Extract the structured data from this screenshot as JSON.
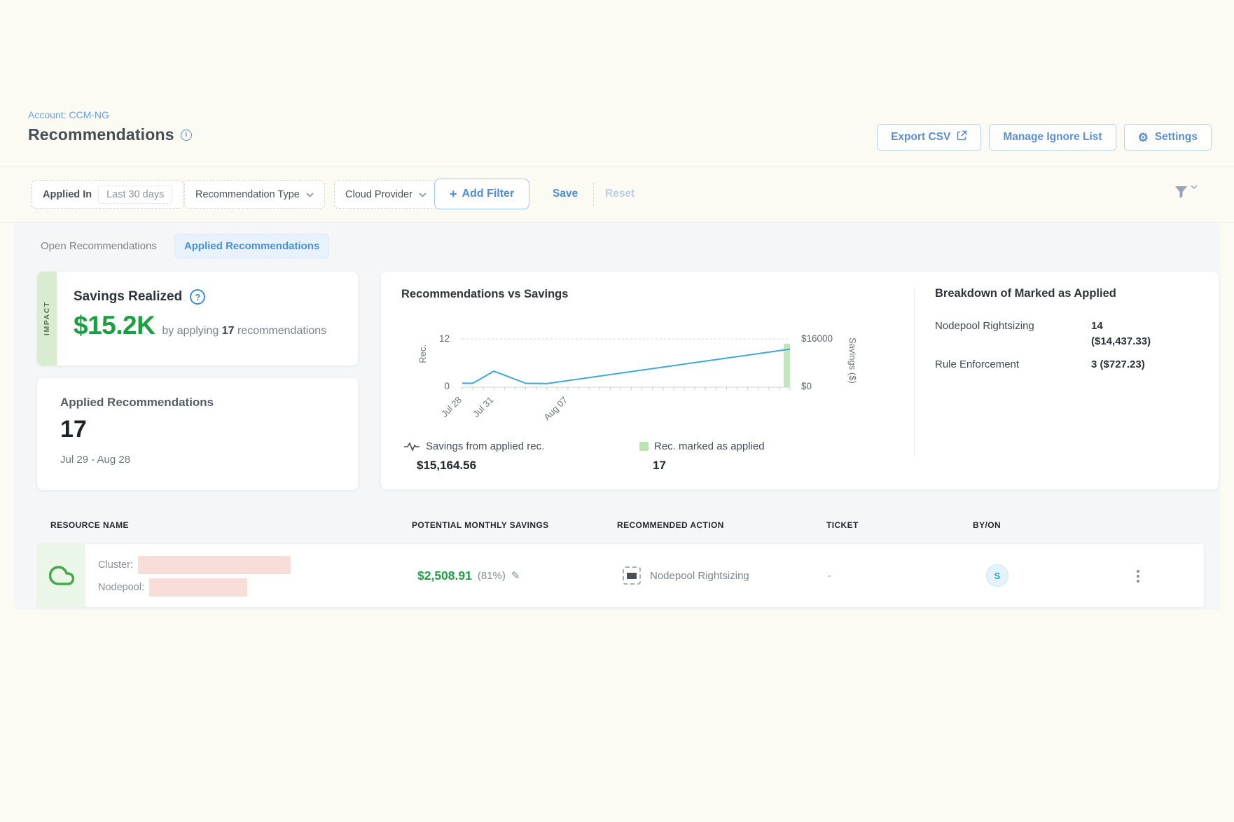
{
  "header": {
    "account_label": "Account: CCM-NG",
    "title": "Recommendations",
    "export_csv_label": "Export CSV",
    "manage_ignore_label": "Manage Ignore List",
    "settings_label": "Settings"
  },
  "filter_bar": {
    "applied_in_label": "Applied In",
    "applied_in_value": "Last 30 days",
    "recommendation_type_label": "Recommendation Type",
    "cloud_provider_label": "Cloud Provider",
    "add_filter_plus": "+",
    "add_filter_label": "Add Filter",
    "save_label": "Save",
    "reset_label": "Reset"
  },
  "tabs": {
    "open_label": "Open Recommendations",
    "applied_label": "Applied Recommendations"
  },
  "impact_card": {
    "stripe_label": "IMPACT",
    "title": "Savings Realized",
    "amount": "$15.2K",
    "desc_prefix": "by applying",
    "desc_count": "17",
    "desc_suffix": "recommendations"
  },
  "applied_card": {
    "title": "Applied Recommendations",
    "count": "17",
    "date_range": "Jul 29 - Aug 28"
  },
  "chart_data": {
    "type": "line+bar",
    "title": "Recommendations vs Savings",
    "x_max_days": 31,
    "x_ticks": [
      {
        "day": 0,
        "label": "Jul 28"
      },
      {
        "day": 3,
        "label": "Jul 31"
      },
      {
        "day": 10,
        "label": "Aug 07"
      }
    ],
    "left_axis": {
      "label": "Rec.",
      "ticks": [
        0,
        12
      ],
      "max_value": 12
    },
    "right_axis": {
      "label": "Savings ($)",
      "ticks": [
        "$0",
        "$16000"
      ],
      "max_value": 16000
    },
    "grid": "top dashed gridline at 12 / $16000, solid baseline at 0",
    "line_series": {
      "name": "Savings from applied rec.",
      "total": "$15,164.56",
      "color": "#3fa8d9",
      "points": [
        [
          0,
          1300
        ],
        [
          1,
          1300
        ],
        [
          3,
          5300
        ],
        [
          6,
          1300
        ],
        [
          8,
          1200
        ],
        [
          31,
          12600
        ]
      ]
    },
    "bar_series": {
      "name": "Rec. marked as applied",
      "total": "17",
      "color": "#b9e5b0",
      "bars": [
        [
          31,
          14400
        ]
      ]
    },
    "legend_position": "bottom"
  },
  "legend": {
    "line_label": "Savings from applied rec.",
    "line_value": "$15,164.56",
    "bar_label": "Rec. marked as applied",
    "bar_value": "17"
  },
  "breakdown": {
    "title": "Breakdown of Marked as Applied",
    "rows": [
      {
        "label": "Nodepool Rightsizing",
        "value": "14\n($14,437.33)"
      },
      {
        "label": "Rule Enforcement",
        "value": "3 ($727.23)"
      }
    ]
  },
  "table": {
    "headers": [
      "RESOURCE NAME",
      "POTENTIAL MONTHLY SAVINGS",
      "RECOMMENDED ACTION",
      "TICKET",
      "BY/ON"
    ],
    "row": {
      "cluster_label": "Cluster:",
      "nodepool_label": "Nodepool:",
      "savings": "$2,508.91",
      "savings_pct": "(81%)",
      "action": "Nodepool Rightsizing",
      "ticket": "-",
      "by_initial": "S"
    }
  },
  "icons": {
    "info": "i",
    "question": "?",
    "gear": "⚙",
    "pencil": "✎"
  },
  "colors": {
    "accent_blue": "#4d8ed8",
    "money_green": "#1d9e41",
    "line_blue": "#3fa8d9",
    "bar_green": "#b9e5b0",
    "impact_stripe_green": "#d8edd0",
    "redact_pink": "#f9ddd8",
    "band_gray": "#f4f6f7"
  }
}
